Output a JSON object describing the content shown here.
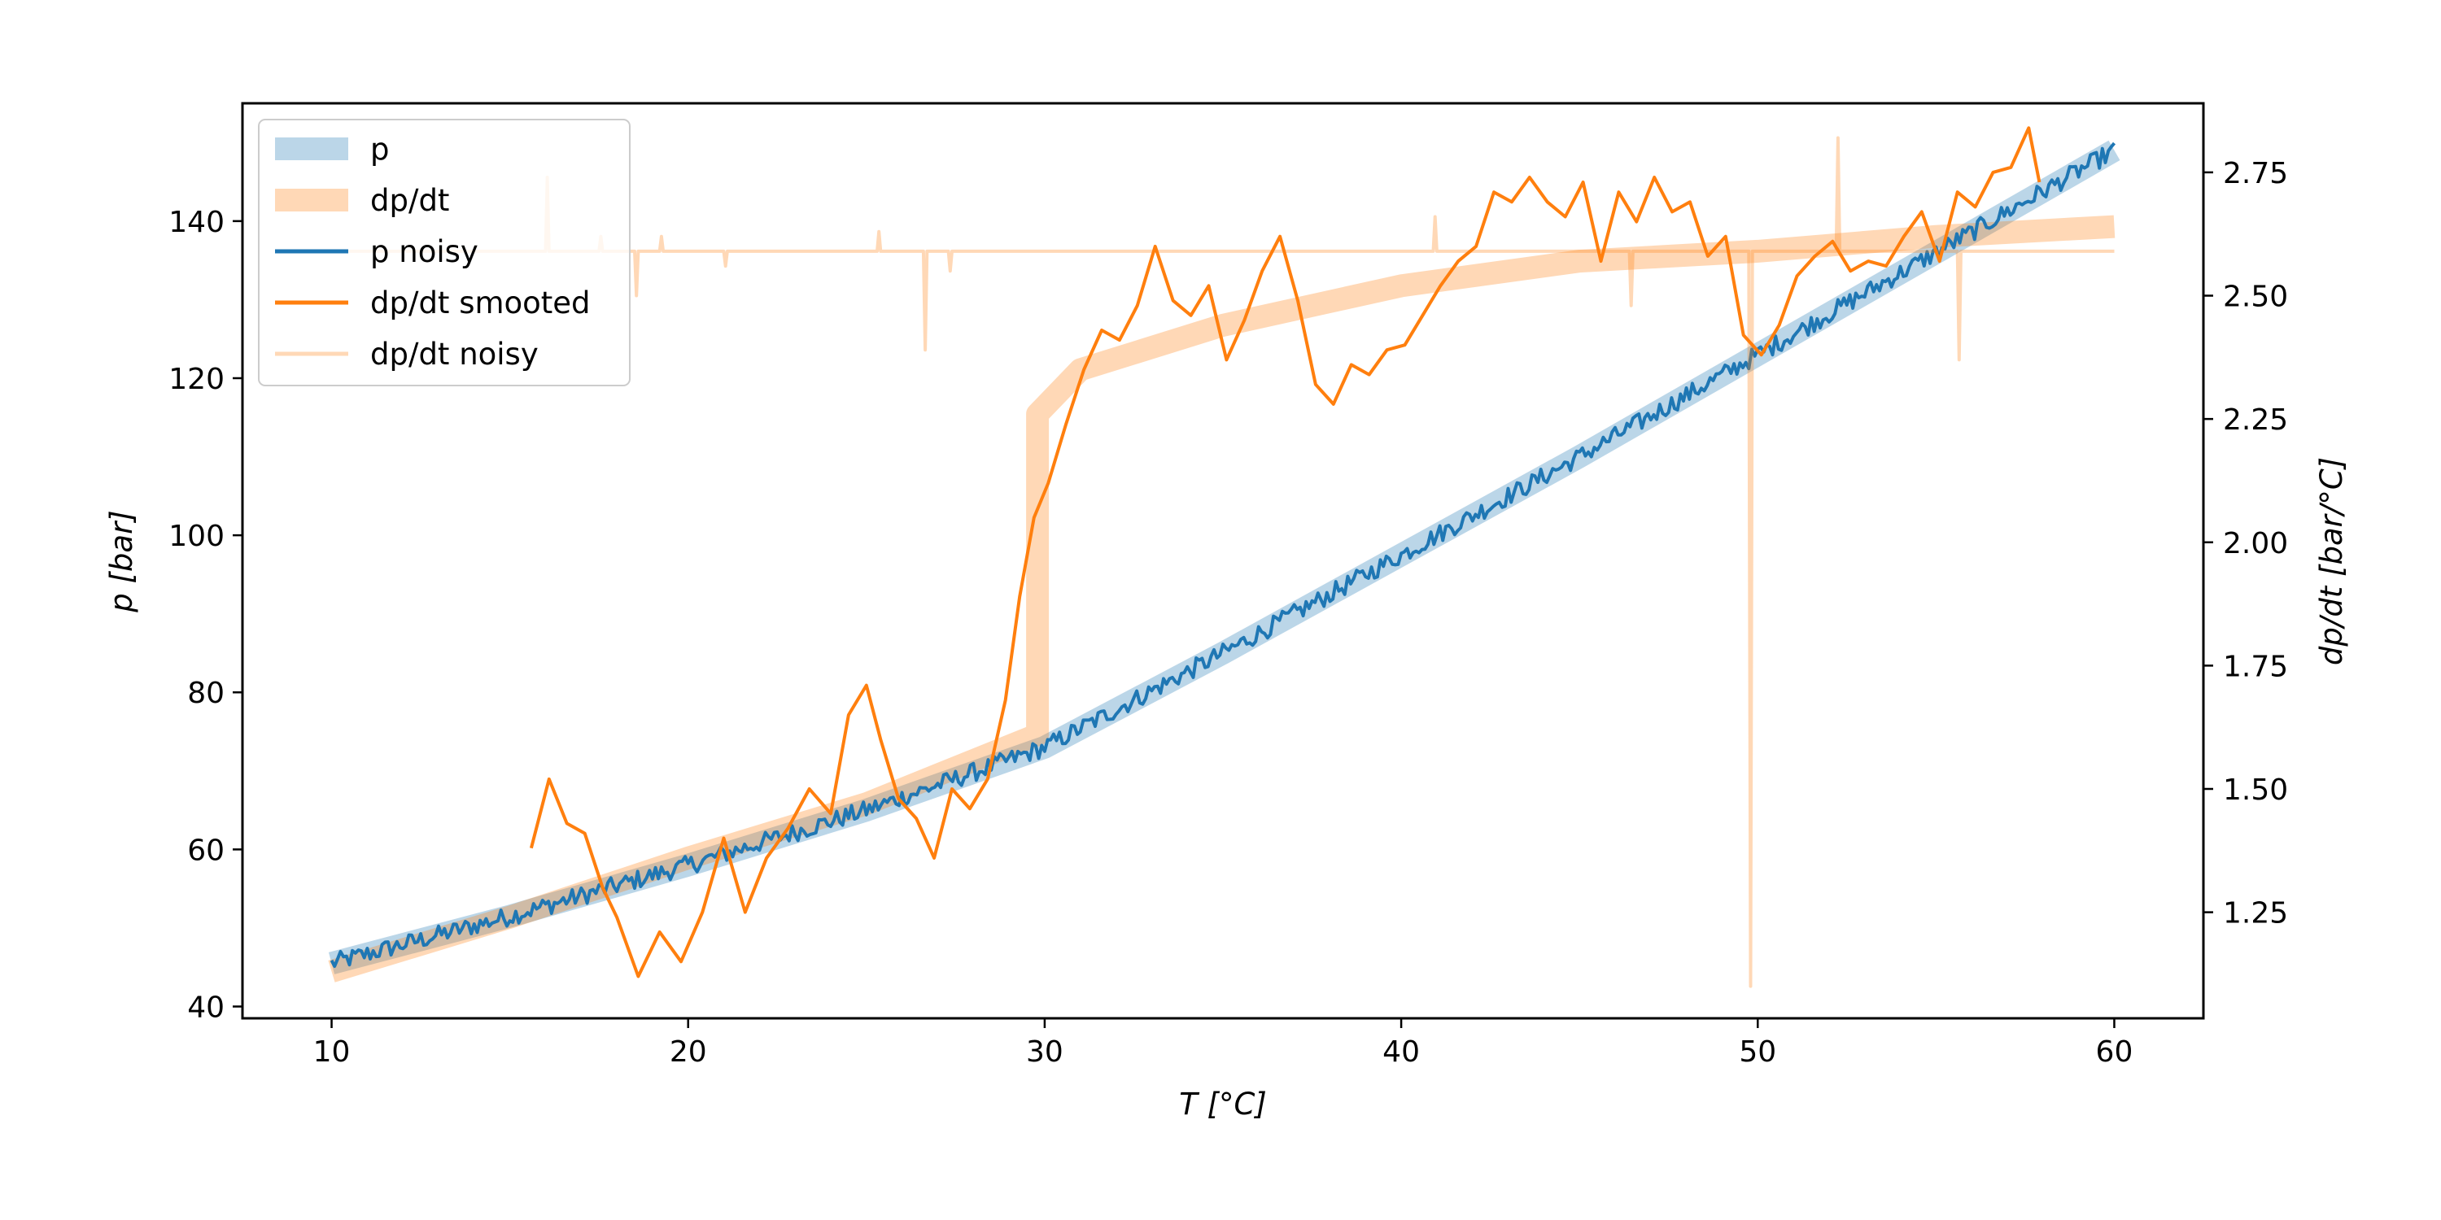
{
  "chart_data": {
    "type": "line",
    "x_axis": {
      "label": "T [°C]",
      "range": [
        7.5,
        62.5
      ],
      "ticks": [
        10,
        20,
        30,
        40,
        50,
        60
      ]
    },
    "y_left": {
      "label": "p [bar]",
      "range": [
        38.5,
        155
      ],
      "ticks": [
        40,
        60,
        80,
        100,
        120,
        140
      ]
    },
    "y_right": {
      "label": "dp/dt [bar/°C]",
      "range": [
        1.035,
        2.89
      ],
      "ticks": [
        1.25,
        1.5,
        1.75,
        2.0,
        2.25,
        2.5,
        2.75
      ],
      "tick_labels": [
        "1.25",
        "1.50",
        "1.75",
        "2.00",
        "2.25",
        "2.50",
        "2.75"
      ]
    },
    "grid": false,
    "legend_position": "upper-left",
    "series": [
      {
        "name": "p",
        "axis": "left",
        "style": "thick",
        "color": "#1f77b4",
        "opacity": 0.3,
        "x": [
          10,
          15,
          20,
          25,
          30,
          35,
          40,
          45,
          50,
          55,
          60
        ],
        "y": [
          45.5,
          51.5,
          58,
          65,
          73,
          85,
          97.5,
          110,
          123,
          136,
          149
        ]
      },
      {
        "name": "dp/dt",
        "axis": "right",
        "style": "thick",
        "color": "#ff7f0e",
        "opacity": 0.3,
        "x": [
          10,
          15,
          20,
          25,
          29.8,
          29.8,
          31,
          35,
          40,
          45,
          50,
          55,
          60
        ],
        "y": [
          1.13,
          1.24,
          1.36,
          1.47,
          1.61,
          2.26,
          2.35,
          2.44,
          2.52,
          2.57,
          2.59,
          2.62,
          2.64
        ]
      },
      {
        "name": "p noisy",
        "axis": "left",
        "style": "noisy",
        "color": "#1f77b4",
        "opacity": 1,
        "x": [
          10,
          15,
          20,
          25,
          30,
          35,
          40,
          45,
          50,
          55,
          60
        ],
        "y": [
          45.5,
          51.5,
          58,
          65,
          73,
          85,
          97.5,
          110,
          123,
          136,
          149
        ]
      },
      {
        "name": "dp/dt smooted",
        "axis": "right",
        "style": "normal",
        "color": "#ff7f0e",
        "opacity": 1,
        "x": [
          15.6,
          16.1,
          16.6,
          17.1,
          17.6,
          18.0,
          18.6,
          19.2,
          19.8,
          20.4,
          21.0,
          21.6,
          22.2,
          22.8,
          23.4,
          24.0,
          24.5,
          25.0,
          25.4,
          25.9,
          26.4,
          26.9,
          27.4,
          27.9,
          28.4,
          28.9,
          29.3,
          29.7,
          30.1,
          30.6,
          31.1,
          31.6,
          32.1,
          32.6,
          33.1,
          33.6,
          34.1,
          34.6,
          35.1,
          35.6,
          36.1,
          36.6,
          37.1,
          37.6,
          38.1,
          38.6,
          39.1,
          39.6,
          40.1,
          40.6,
          41.1,
          41.6,
          42.1,
          42.6,
          43.1,
          43.6,
          44.1,
          44.6,
          45.1,
          45.6,
          46.1,
          46.6,
          47.1,
          47.6,
          48.1,
          48.6,
          49.1,
          49.6,
          50.1,
          50.6,
          51.1,
          51.6,
          52.1,
          52.6,
          53.1,
          53.6,
          54.1,
          54.6,
          55.1,
          55.6,
          56.1,
          56.6,
          57.1,
          57.6,
          57.9
        ],
        "y": [
          1.38,
          1.52,
          1.43,
          1.41,
          1.3,
          1.24,
          1.12,
          1.21,
          1.15,
          1.25,
          1.4,
          1.25,
          1.36,
          1.42,
          1.5,
          1.45,
          1.65,
          1.71,
          1.6,
          1.48,
          1.44,
          1.36,
          1.5,
          1.46,
          1.52,
          1.68,
          1.89,
          2.05,
          2.12,
          2.24,
          2.35,
          2.43,
          2.41,
          2.48,
          2.6,
          2.49,
          2.46,
          2.52,
          2.37,
          2.45,
          2.55,
          2.62,
          2.49,
          2.32,
          2.28,
          2.36,
          2.34,
          2.39,
          2.4,
          2.46,
          2.52,
          2.57,
          2.6,
          2.71,
          2.69,
          2.74,
          2.69,
          2.66,
          2.73,
          2.57,
          2.71,
          2.65,
          2.74,
          2.67,
          2.69,
          2.58,
          2.62,
          2.42,
          2.38,
          2.44,
          2.54,
          2.58,
          2.61,
          2.55,
          2.57,
          2.56,
          2.62,
          2.67,
          2.57,
          2.71,
          2.68,
          2.75,
          2.76,
          2.84,
          2.73
        ]
      },
      {
        "name": "dp/dt noisy",
        "axis": "right",
        "style": "normal",
        "color": "#ff7f0e",
        "opacity": 0.3,
        "x": [
          10,
          16.0,
          16.05,
          16.1,
          17.5,
          17.55,
          17.6,
          18.5,
          18.55,
          18.6,
          19.2,
          19.25,
          19.3,
          21.0,
          21.05,
          21.1,
          25.3,
          25.35,
          25.4,
          26.6,
          26.65,
          26.7,
          27.3,
          27.35,
          27.4,
          40.9,
          40.95,
          41.0,
          46.4,
          46.45,
          46.5,
          49.75,
          49.8,
          49.85,
          52.2,
          52.25,
          52.3,
          55.6,
          55.65,
          55.7,
          60
        ],
        "y": [
          2.59,
          2.59,
          2.74,
          2.59,
          2.59,
          2.62,
          2.59,
          2.59,
          2.5,
          2.59,
          2.59,
          2.62,
          2.59,
          2.59,
          2.56,
          2.59,
          2.59,
          2.63,
          2.59,
          2.59,
          2.39,
          2.59,
          2.59,
          2.55,
          2.59,
          2.59,
          2.66,
          2.59,
          2.59,
          2.48,
          2.59,
          2.59,
          1.1,
          2.59,
          2.59,
          2.82,
          2.59,
          2.59,
          2.37,
          2.59,
          2.59
        ]
      }
    ]
  }
}
